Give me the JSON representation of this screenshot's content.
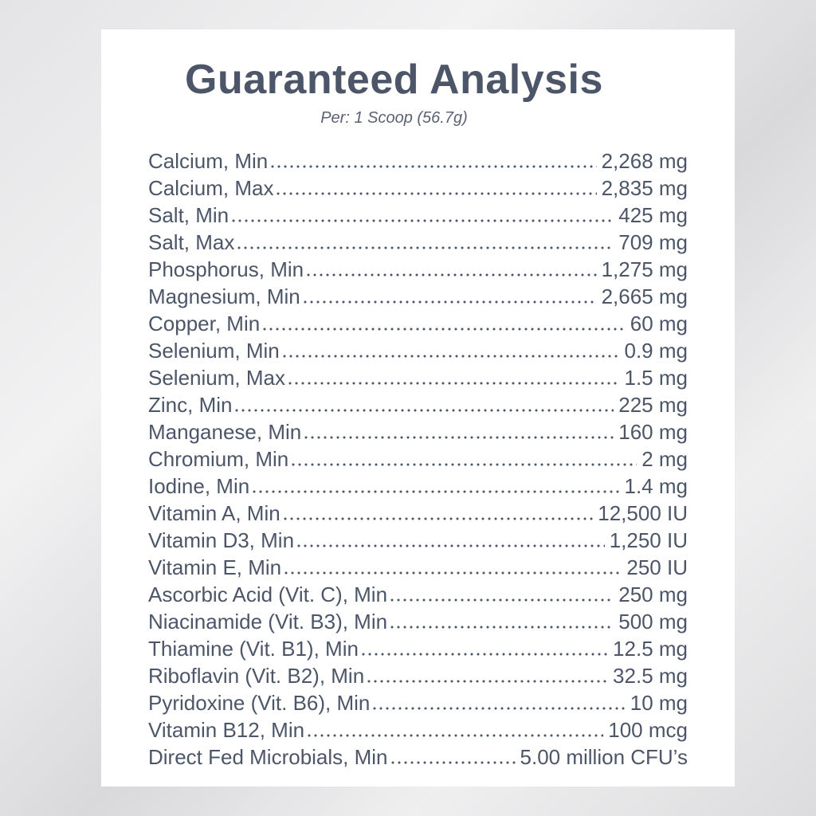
{
  "title": "Guaranteed Analysis",
  "subtitle": "Per: 1 Scoop (56.7g)",
  "rows": [
    {
      "label": "Calcium, Min",
      "value": "2,268 mg"
    },
    {
      "label": "Calcium, Max",
      "value": "2,835 mg"
    },
    {
      "label": "Salt, Min",
      "value": "425 mg"
    },
    {
      "label": "Salt, Max",
      "value": "709 mg"
    },
    {
      "label": "Phosphorus, Min",
      "value": "1,275 mg"
    },
    {
      "label": "Magnesium, Min",
      "value": "2,665 mg"
    },
    {
      "label": "Copper, Min",
      "value": "60 mg"
    },
    {
      "label": "Selenium, Min",
      "value": "0.9 mg"
    },
    {
      "label": "Selenium, Max",
      "value": "1.5 mg"
    },
    {
      "label": "Zinc, Min",
      "value": "225 mg"
    },
    {
      "label": "Manganese, Min",
      "value": "160 mg"
    },
    {
      "label": "Chromium, Min",
      "value": "2 mg"
    },
    {
      "label": "Iodine, Min",
      "value": "1.4 mg"
    },
    {
      "label": "Vitamin A, Min",
      "value": "12,500 IU"
    },
    {
      "label": "Vitamin D3, Min",
      "value": "1,250 IU"
    },
    {
      "label": "Vitamin E, Min",
      "value": "250 IU"
    },
    {
      "label": "Ascorbic Acid (Vit. C), Min",
      "value": "250 mg"
    },
    {
      "label": "Niacinamide (Vit. B3), Min",
      "value": "500 mg"
    },
    {
      "label": "Thiamine (Vit. B1), Min",
      "value": "12.5 mg"
    },
    {
      "label": "Riboflavin (Vit. B2), Min",
      "value": "32.5 mg"
    },
    {
      "label": "Pyridoxine (Vit. B6), Min",
      "value": "10 mg"
    },
    {
      "label": "Vitamin B12, Min",
      "value": "100 mcg"
    },
    {
      "label": "Direct Fed Microbials, Min",
      "value": "5.00 million CFU’s"
    }
  ]
}
